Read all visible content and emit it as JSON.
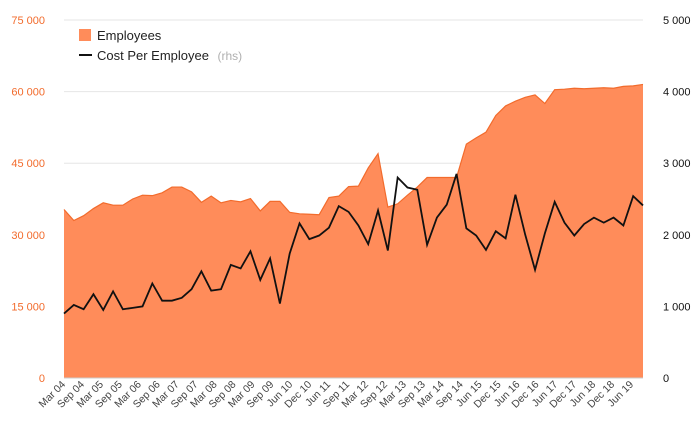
{
  "chart_data": {
    "type": "area+line",
    "title": "",
    "left_axis": {
      "ylim": [
        0,
        75000
      ],
      "ticks": [
        0,
        15000,
        30000,
        45000,
        60000,
        75000
      ],
      "tick_labels": [
        "0",
        "15 000",
        "30 000",
        "45 000",
        "60 000",
        "75 000"
      ]
    },
    "right_axis": {
      "ylim": [
        0,
        5000
      ],
      "ticks": [
        0,
        1000,
        2000,
        3000,
        4000,
        5000
      ],
      "tick_labels": [
        "0",
        "1 000",
        "2 000",
        "3 000",
        "4 000",
        "5 000"
      ]
    },
    "x_tick_labels": [
      "Mar 04",
      "Sep 04",
      "Mar 05",
      "Sep 05",
      "Mar 06",
      "Sep 06",
      "Mar 07",
      "Sep 07",
      "Mar 08",
      "Sep 08",
      "Mar 09",
      "Sep 09",
      "Jun 10",
      "Dec 10",
      "Jun 11",
      "Sep 11",
      "Mar 12",
      "Sep 12",
      "Mar 13",
      "Sep 13",
      "Mar 14",
      "Sep 14",
      "Jun 15",
      "Dec 15",
      "Jun 16",
      "Dec 16",
      "Jun 17",
      "Dec 17",
      "Jun 18",
      "Dec 18",
      "Jun 19"
    ],
    "legend": {
      "employees_label": "Employees",
      "cost_label": "Cost Per Employee",
      "cost_note": "(rhs)",
      "placement": "top-left"
    },
    "colors": {
      "area": "#ff8c5a",
      "area_edge": "#f26b2c",
      "line": "#111111",
      "left_axis": "#f26b2c"
    },
    "series": [
      {
        "name": "Employees",
        "axis": "left",
        "kind": "area",
        "values": [
          35300,
          33000,
          34000,
          35500,
          36700,
          36200,
          36200,
          37500,
          38300,
          38200,
          38800,
          40000,
          40000,
          39000,
          36800,
          38100,
          36700,
          37200,
          36900,
          37600,
          35000,
          37000,
          37000,
          34700,
          34400,
          34300,
          34200,
          37800,
          38100,
          40100,
          40200,
          44000,
          47000,
          35800,
          36500,
          38300,
          40000,
          42000,
          42000,
          42000,
          42000,
          49000,
          50300,
          51500,
          55000,
          57000,
          58000,
          58800,
          59300,
          57500,
          60400,
          60500,
          60700,
          60600,
          60700,
          60800,
          60700,
          61100,
          61200,
          61500
        ]
      },
      {
        "name": "Cost Per Employee",
        "axis": "right",
        "kind": "line",
        "values": [
          900,
          1020,
          960,
          1170,
          950,
          1210,
          960,
          980,
          1000,
          1320,
          1080,
          1080,
          1120,
          1240,
          1490,
          1220,
          1240,
          1580,
          1530,
          1770,
          1370,
          1670,
          1040,
          1740,
          2160,
          1940,
          1990,
          2100,
          2400,
          2320,
          2130,
          1870,
          2340,
          1780,
          2800,
          2660,
          2630,
          1860,
          2240,
          2420,
          2850,
          2090,
          1990,
          1790,
          2050,
          1950,
          2560,
          2000,
          1510,
          2020,
          2460,
          2170,
          1990,
          2150,
          2240,
          2170,
          2240,
          2130,
          2540,
          2410
        ]
      }
    ]
  }
}
